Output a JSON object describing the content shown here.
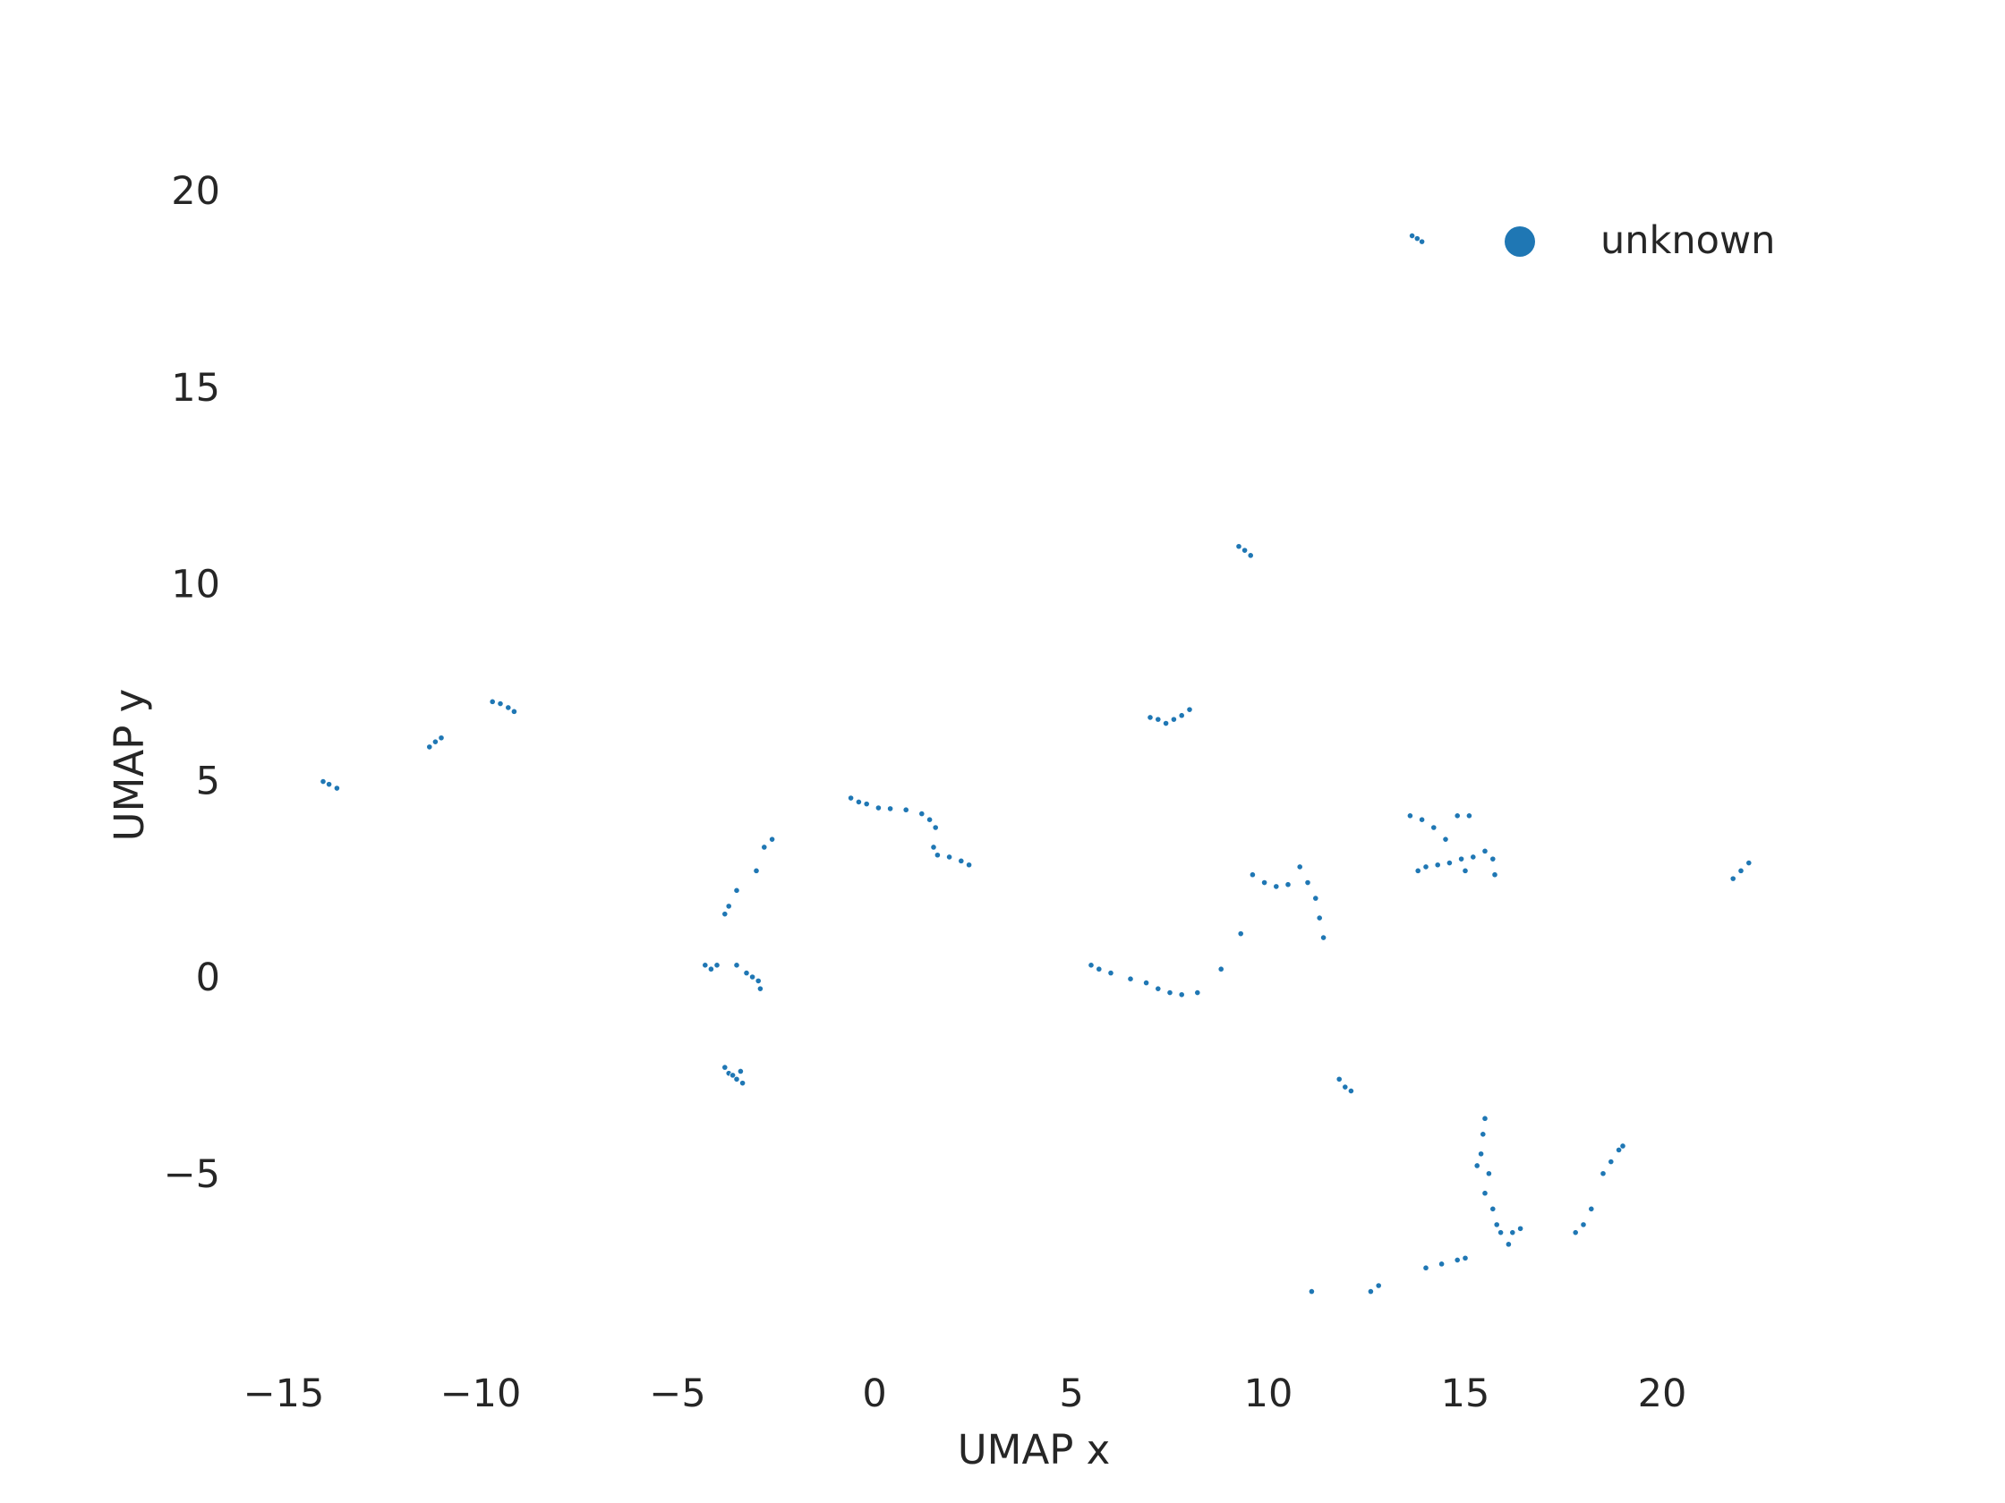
{
  "chart_data": {
    "type": "scatter",
    "title": "",
    "xlabel": "UMAP x",
    "ylabel": "UMAP y",
    "xlim": [
      -16.5,
      25
    ],
    "ylim": [
      -9.4,
      22.5
    ],
    "xticks": [
      -15,
      -10,
      -5,
      0,
      5,
      10,
      15,
      20
    ],
    "yticks": [
      -5,
      0,
      5,
      10,
      15,
      20
    ],
    "xtick_labels": [
      "−15",
      "−10",
      "−5",
      "0",
      "5",
      "10",
      "15",
      "20"
    ],
    "ytick_labels": [
      "−5",
      "0",
      "5",
      "10",
      "15",
      "20"
    ],
    "grid": false,
    "legend_position": "top-right",
    "colors": {
      "series": "#1f77b4",
      "text": "#262626",
      "background": "#ffffff"
    },
    "series": [
      {
        "name": "unknown",
        "points": [
          [
            13.65,
            18.85
          ],
          [
            13.78,
            18.78
          ],
          [
            13.9,
            18.7
          ],
          [
            9.25,
            10.95
          ],
          [
            9.4,
            10.85
          ],
          [
            9.55,
            10.72
          ],
          [
            -14.0,
            4.97
          ],
          [
            -13.85,
            4.9
          ],
          [
            -13.65,
            4.8
          ],
          [
            -11.3,
            5.85
          ],
          [
            -11.15,
            5.98
          ],
          [
            -11.0,
            6.08
          ],
          [
            -9.7,
            7.0
          ],
          [
            -9.5,
            6.95
          ],
          [
            -9.3,
            6.85
          ],
          [
            -9.15,
            6.75
          ],
          [
            7.0,
            6.6
          ],
          [
            7.2,
            6.55
          ],
          [
            7.4,
            6.45
          ],
          [
            7.6,
            6.55
          ],
          [
            7.8,
            6.65
          ],
          [
            8.0,
            6.8
          ],
          [
            -0.6,
            4.55
          ],
          [
            -0.4,
            4.45
          ],
          [
            -0.2,
            4.4
          ],
          [
            0.1,
            4.3
          ],
          [
            0.4,
            4.28
          ],
          [
            0.8,
            4.25
          ],
          [
            1.2,
            4.15
          ],
          [
            1.4,
            4.0
          ],
          [
            1.55,
            3.8
          ],
          [
            1.5,
            3.3
          ],
          [
            1.6,
            3.1
          ],
          [
            1.9,
            3.05
          ],
          [
            2.2,
            2.95
          ],
          [
            2.4,
            2.85
          ],
          [
            -2.8,
            3.3
          ],
          [
            -2.6,
            3.5
          ],
          [
            -3.0,
            2.7
          ],
          [
            -3.5,
            2.2
          ],
          [
            -3.7,
            1.8
          ],
          [
            -3.8,
            1.6
          ],
          [
            -4.3,
            0.3
          ],
          [
            -4.15,
            0.2
          ],
          [
            -4.0,
            0.3
          ],
          [
            -3.5,
            0.3
          ],
          [
            -3.25,
            0.1
          ],
          [
            -3.1,
            0.0
          ],
          [
            -2.95,
            -0.1
          ],
          [
            -2.9,
            -0.3
          ],
          [
            -3.8,
            -2.3
          ],
          [
            -3.7,
            -2.45
          ],
          [
            -3.6,
            -2.5
          ],
          [
            -3.5,
            -2.6
          ],
          [
            -3.4,
            -2.4
          ],
          [
            -3.35,
            -2.7
          ],
          [
            5.5,
            0.3
          ],
          [
            5.7,
            0.2
          ],
          [
            6.0,
            0.1
          ],
          [
            6.5,
            -0.05
          ],
          [
            6.9,
            -0.15
          ],
          [
            7.2,
            -0.3
          ],
          [
            7.5,
            -0.4
          ],
          [
            7.8,
            -0.45
          ],
          [
            8.2,
            -0.4
          ],
          [
            8.8,
            0.2
          ],
          [
            9.3,
            1.1
          ],
          [
            9.6,
            2.6
          ],
          [
            9.9,
            2.4
          ],
          [
            10.2,
            2.3
          ],
          [
            10.5,
            2.35
          ],
          [
            10.8,
            2.8
          ],
          [
            11.0,
            2.4
          ],
          [
            11.2,
            2.0
          ],
          [
            11.3,
            1.5
          ],
          [
            11.4,
            1.0
          ],
          [
            13.6,
            4.1
          ],
          [
            13.9,
            4.0
          ],
          [
            14.2,
            3.8
          ],
          [
            14.8,
            4.1
          ],
          [
            15.1,
            4.1
          ],
          [
            15.5,
            3.2
          ],
          [
            15.7,
            3.0
          ],
          [
            15.75,
            2.6
          ],
          [
            13.8,
            2.7
          ],
          [
            14.0,
            2.8
          ],
          [
            14.3,
            2.85
          ],
          [
            14.6,
            2.9
          ],
          [
            14.9,
            3.0
          ],
          [
            15.2,
            3.05
          ],
          [
            14.5,
            3.5
          ],
          [
            15.0,
            2.7
          ],
          [
            21.8,
            2.5
          ],
          [
            22.0,
            2.7
          ],
          [
            22.2,
            2.9
          ],
          [
            11.8,
            -2.6
          ],
          [
            11.95,
            -2.8
          ],
          [
            12.1,
            -2.9
          ],
          [
            15.5,
            -3.6
          ],
          [
            15.45,
            -4.0
          ],
          [
            15.4,
            -4.5
          ],
          [
            15.3,
            -4.8
          ],
          [
            15.6,
            -5.0
          ],
          [
            15.5,
            -5.5
          ],
          [
            15.7,
            -5.9
          ],
          [
            15.8,
            -6.3
          ],
          [
            15.9,
            -6.5
          ],
          [
            16.1,
            -6.8
          ],
          [
            16.2,
            -6.5
          ],
          [
            16.4,
            -6.4
          ],
          [
            14.0,
            -7.4
          ],
          [
            14.4,
            -7.3
          ],
          [
            14.8,
            -7.2
          ],
          [
            15.0,
            -7.15
          ],
          [
            11.1,
            -8.0
          ],
          [
            12.6,
            -8.0
          ],
          [
            12.8,
            -7.85
          ],
          [
            17.8,
            -6.5
          ],
          [
            18.0,
            -6.3
          ],
          [
            18.2,
            -5.9
          ],
          [
            18.5,
            -5.0
          ],
          [
            18.7,
            -4.7
          ],
          [
            18.9,
            -4.4
          ],
          [
            19.0,
            -4.3
          ]
        ]
      }
    ]
  }
}
